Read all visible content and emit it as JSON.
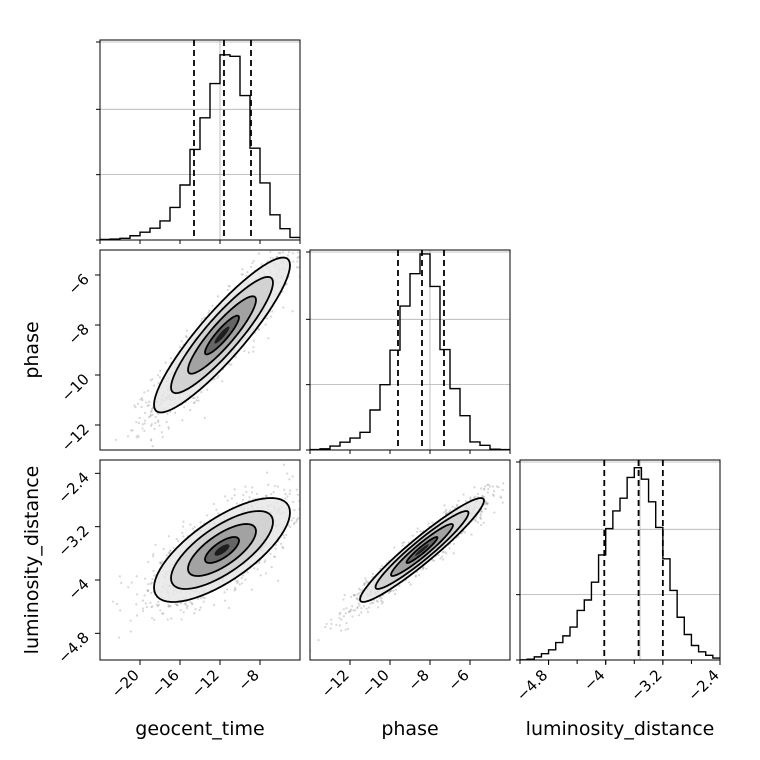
{
  "figure": {
    "type": "corner-plot",
    "parameters": [
      "geocent_time",
      "phase",
      "luminosity_distance"
    ]
  },
  "chart_data": [
    {
      "type": "bar",
      "panel": "geocent_time-histogram",
      "histtype": "step",
      "x_bin_edges": [
        -24.0,
        -23.0,
        -22.0,
        -21.0,
        -20.0,
        -19.0,
        -18.0,
        -17.0,
        -16.0,
        -15.0,
        -14.0,
        -13.0,
        -12.0,
        -11.0,
        -10.0,
        -9.0,
        -8.0,
        -7.0,
        -6.0,
        -5.0,
        -4.0
      ],
      "counts": [
        0.3,
        0.5,
        0.9,
        2.3,
        4.2,
        6.4,
        10.3,
        17.6,
        29.7,
        48.9,
        66.0,
        84.5,
        100.0,
        99.2,
        78.0,
        49.6,
        30.8,
        13.6,
        6.1,
        1.4
      ],
      "quantile_lines_x": [
        -14.6,
        -11.6,
        -8.9
      ],
      "xlim": [
        -24.0,
        -4.0
      ],
      "ylim": [
        0,
        108
      ],
      "grid": true
    },
    {
      "type": "bar",
      "panel": "phase-histogram",
      "histtype": "step",
      "x_bin_edges": [
        -14.0,
        -13.5,
        -13.0,
        -12.5,
        -12.0,
        -11.5,
        -11.0,
        -10.5,
        -10.0,
        -9.5,
        -9.0,
        -8.5,
        -8.0,
        -7.5,
        -7.0,
        -6.5,
        -6.0,
        -5.5,
        -5.0,
        -4.5,
        -4.0
      ],
      "counts": [
        0.2,
        0.6,
        2.0,
        4.0,
        6.1,
        9.0,
        20.4,
        33.3,
        50.9,
        73.4,
        89.9,
        100.0,
        83.4,
        51.2,
        31.3,
        17.5,
        4.1,
        2.4,
        0.4,
        0.2
      ],
      "quantile_lines_x": [
        -9.6,
        -8.4,
        -7.3
      ],
      "xlim": [
        -14.0,
        -4.0
      ],
      "ylim": [
        0,
        102
      ],
      "grid": true
    },
    {
      "type": "bar",
      "panel": "luminosity_distance-histogram",
      "histtype": "step",
      "x_bin_edges": [
        -5.2,
        -5.1,
        -5.0,
        -4.9,
        -4.8,
        -4.7,
        -4.6,
        -4.5,
        -4.4,
        -4.3,
        -4.2,
        -4.1,
        -4.0,
        -3.9,
        -3.8,
        -3.7,
        -3.6,
        -3.5,
        -3.4,
        -3.3,
        -3.2,
        -3.1,
        -3.0,
        -2.9,
        -2.8,
        -2.7,
        -2.6,
        -2.5,
        -2.4
      ],
      "counts": [
        0.1,
        0.4,
        1.6,
        3.2,
        5.2,
        8.9,
        12.3,
        16.8,
        25.3,
        30.6,
        39.7,
        53.6,
        67.0,
        76.0,
        82.5,
        93.1,
        98.1,
        92.2,
        80.7,
        67.6,
        51.6,
        35.5,
        21.8,
        13.0,
        7.4,
        4.2,
        2.4,
        1.0
      ],
      "quantile_lines_x": [
        -4.02,
        -3.54,
        -3.2
      ],
      "xlim": [
        -5.2,
        -2.4
      ],
      "ylim": [
        0,
        102
      ],
      "grid": true
    },
    {
      "type": "scatter",
      "panel": "geocent_time-vs-phase",
      "style": "2d-density-contours",
      "mean": [
        -11.8,
        -8.4
      ],
      "std": [
        3.4,
        1.55
      ],
      "correlation": 0.9,
      "n_samples": 1600,
      "xlim": [
        -24.0,
        -4.0
      ],
      "ylim": [
        -13.0,
        -5.0
      ],
      "ylabel": "phase",
      "yticks": [
        -12,
        -10,
        -8,
        -6
      ]
    },
    {
      "type": "scatter",
      "panel": "geocent_time-vs-luminosity_distance",
      "style": "2d-density-contours",
      "mean": [
        -11.8,
        -3.55
      ],
      "std": [
        3.4,
        0.39
      ],
      "correlation": 0.72,
      "n_samples": 1600,
      "xlim": [
        -24.0,
        -4.0
      ],
      "ylim": [
        -5.2,
        -2.2
      ],
      "xlabel": "geocent_time",
      "ylabel": "luminosity_distance",
      "xticks": [
        -20,
        -16,
        -12,
        -8
      ],
      "yticks": [
        -4.8,
        -4.0,
        -3.2,
        -2.4
      ]
    },
    {
      "type": "scatter",
      "panel": "phase-vs-luminosity_distance",
      "style": "2d-density-contours",
      "mean": [
        -8.4,
        -3.55
      ],
      "std": [
        1.55,
        0.39
      ],
      "correlation": 0.95,
      "n_samples": 1600,
      "xlim": [
        -14.0,
        -4.0
      ],
      "ylim": [
        -5.2,
        -2.2
      ],
      "xlabel": "phase",
      "xticks": [
        -12,
        -10,
        -8,
        -6
      ]
    },
    {
      "panel": "luminosity_distance-axis",
      "xlabel": "luminosity_distance",
      "xticks": [
        -4.8,
        -4.0,
        -3.2,
        -2.4
      ]
    }
  ]
}
